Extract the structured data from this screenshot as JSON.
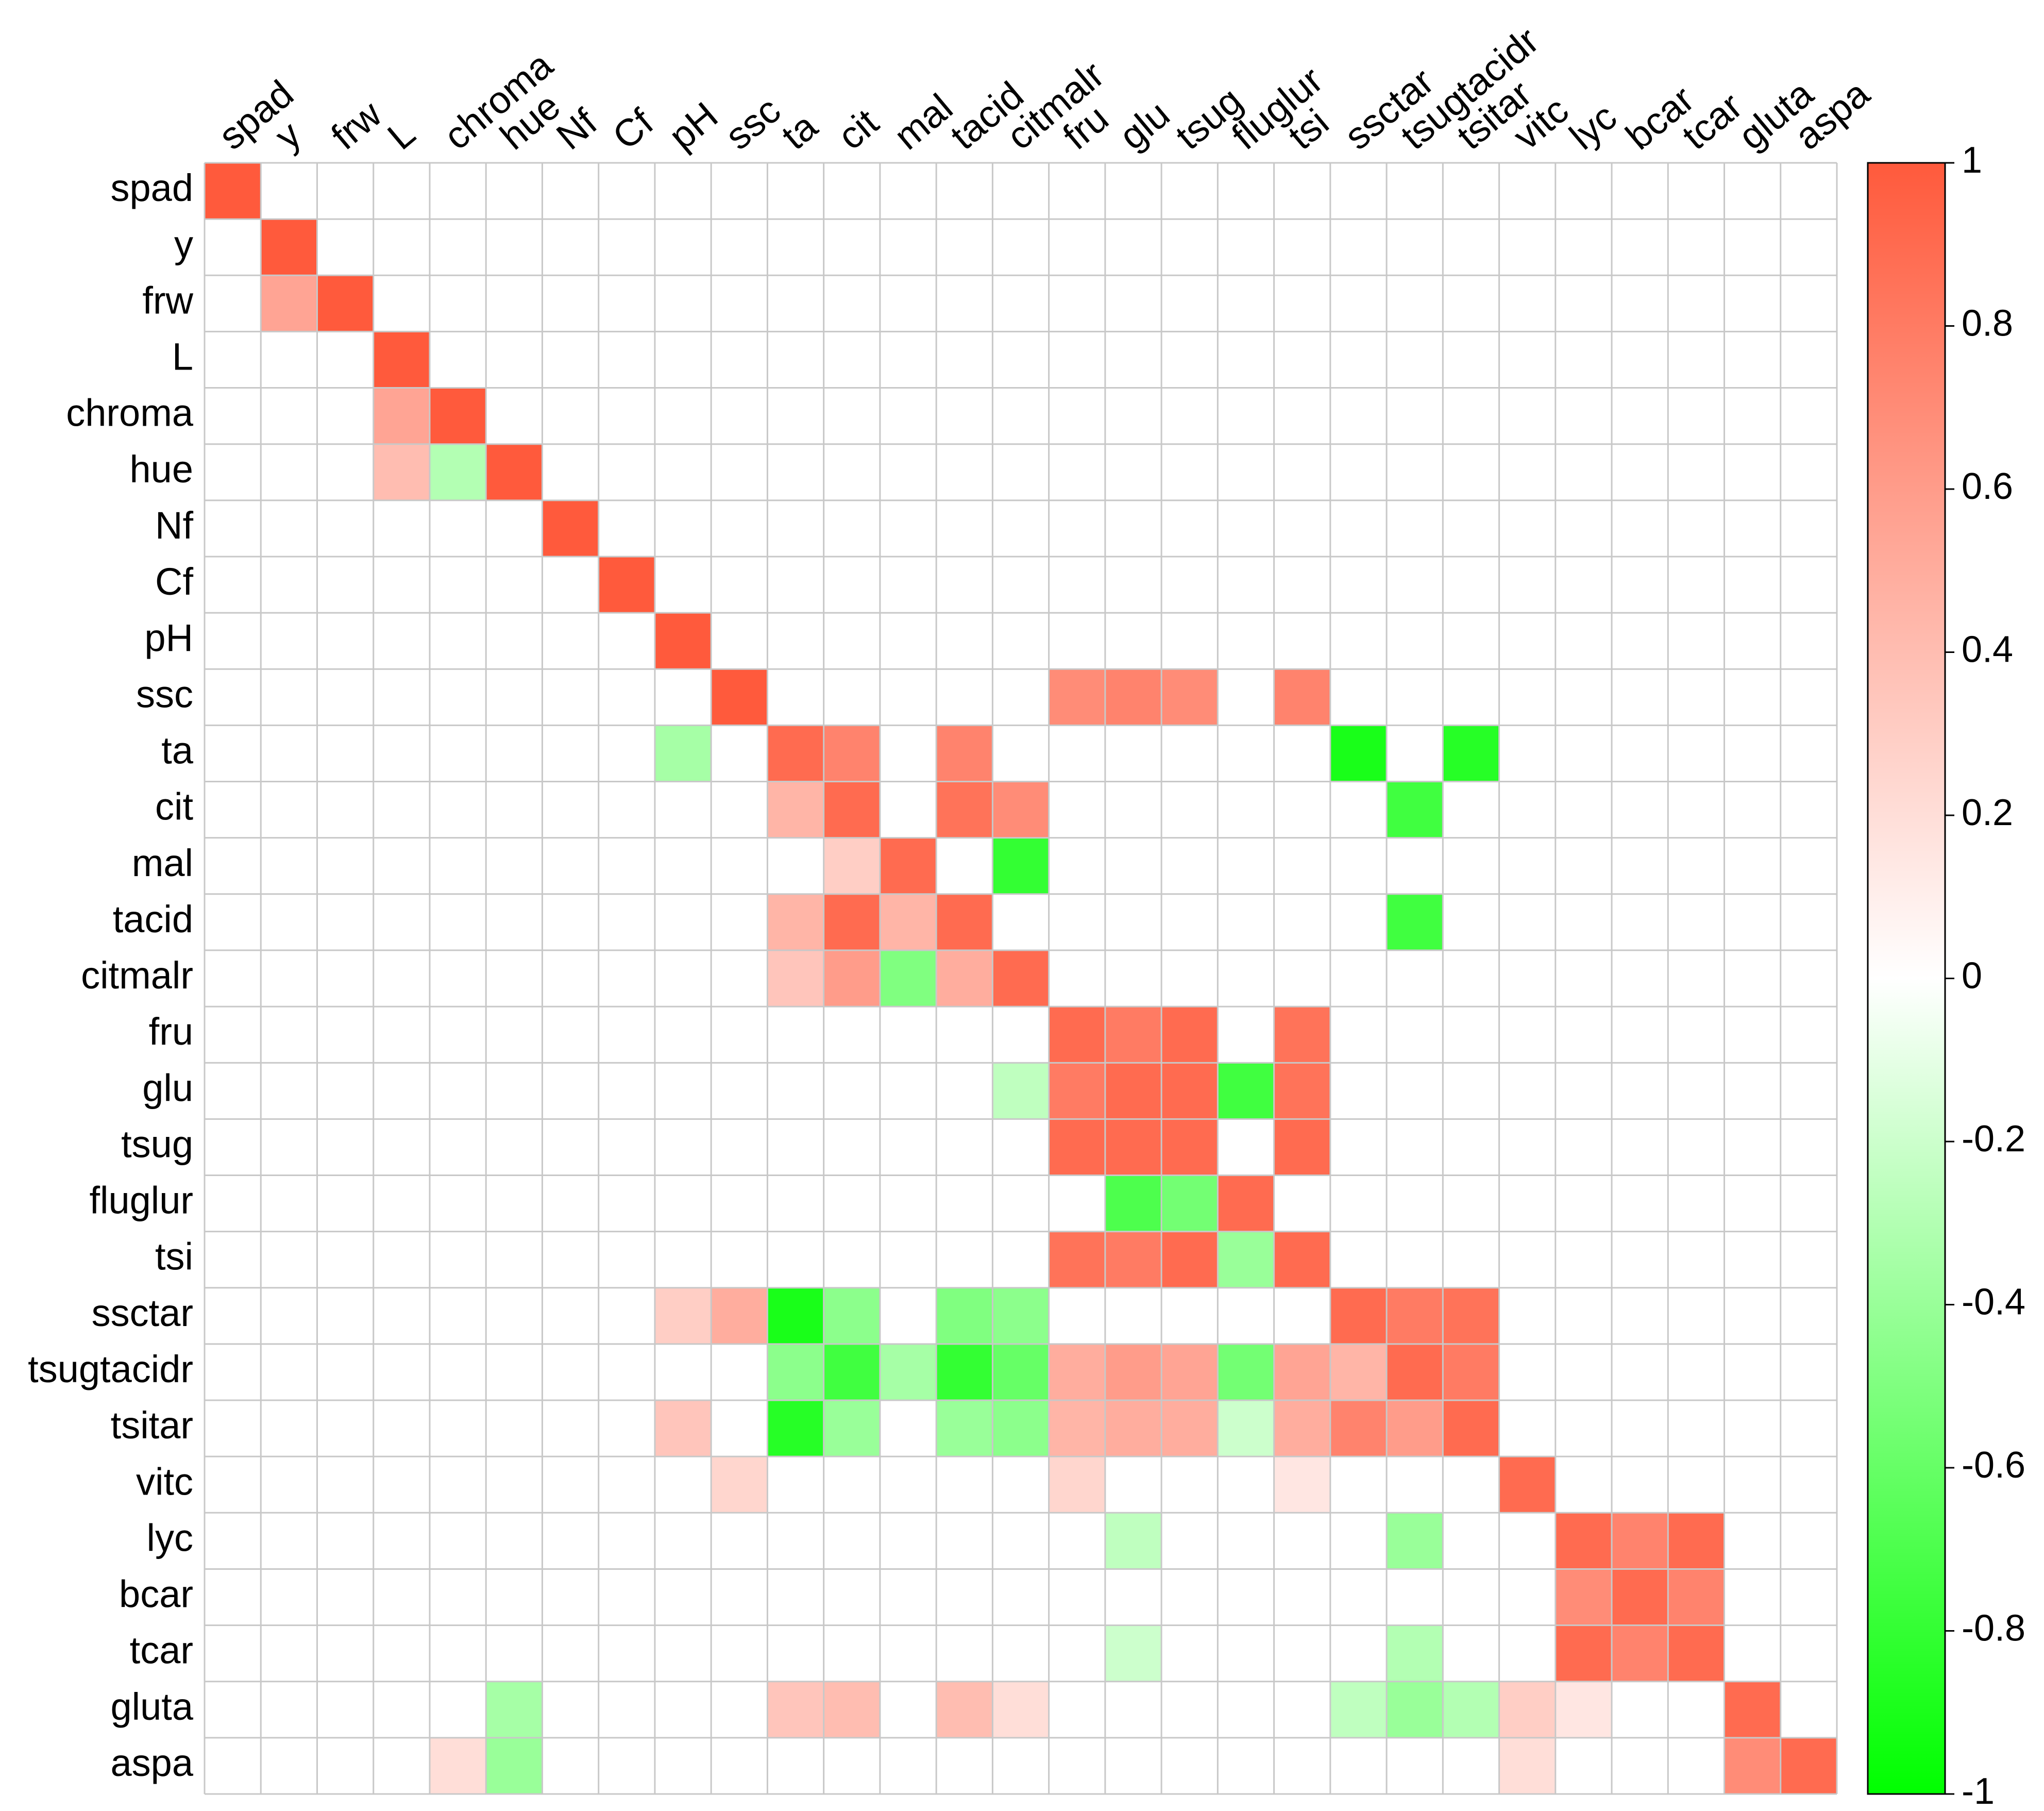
{
  "chart_data": {
    "type": "heatmap",
    "categories": [
      "spad",
      "y",
      "frw",
      "L",
      "chroma",
      "hue",
      "Nf",
      "Cf",
      "pH",
      "ssc",
      "ta",
      "cit",
      "mal",
      "tacid",
      "citmalr",
      "fru",
      "glu",
      "tsug",
      "fluglur",
      "tsi",
      "ssctar",
      "tsugtacidr",
      "tsitar",
      "vitc",
      "lyc",
      "bcar",
      "tcar",
      "gluta",
      "aspa"
    ],
    "values": [
      [
        1,
        null,
        null,
        null,
        null,
        null,
        null,
        null,
        null,
        null,
        null,
        null,
        null,
        null,
        null,
        null,
        null,
        null,
        null,
        null,
        null,
        null,
        null,
        null,
        null,
        null,
        null,
        null,
        null
      ],
      [
        null,
        1,
        null,
        null,
        null,
        null,
        null,
        null,
        null,
        null,
        null,
        null,
        null,
        null,
        null,
        null,
        null,
        null,
        null,
        null,
        null,
        null,
        null,
        null,
        null,
        null,
        null,
        null,
        null
      ],
      [
        null,
        0.55,
        1,
        null,
        null,
        null,
        null,
        null,
        null,
        null,
        null,
        null,
        null,
        null,
        null,
        null,
        null,
        null,
        null,
        null,
        null,
        null,
        null,
        null,
        null,
        null,
        null,
        null,
        null
      ],
      [
        null,
        null,
        null,
        1,
        null,
        null,
        null,
        null,
        null,
        null,
        null,
        null,
        null,
        null,
        null,
        null,
        null,
        null,
        null,
        null,
        null,
        null,
        null,
        null,
        null,
        null,
        null,
        null,
        null
      ],
      [
        null,
        null,
        null,
        0.55,
        1,
        null,
        null,
        null,
        null,
        null,
        null,
        null,
        null,
        null,
        null,
        null,
        null,
        null,
        null,
        null,
        null,
        null,
        null,
        null,
        null,
        null,
        null,
        null,
        null
      ],
      [
        null,
        null,
        null,
        0.4,
        -0.3,
        1,
        null,
        null,
        null,
        null,
        null,
        null,
        null,
        null,
        null,
        null,
        null,
        null,
        null,
        null,
        null,
        null,
        null,
        null,
        null,
        null,
        null,
        null,
        null
      ],
      [
        null,
        null,
        null,
        null,
        null,
        null,
        1,
        null,
        null,
        null,
        null,
        null,
        null,
        null,
        null,
        null,
        null,
        null,
        null,
        null,
        null,
        null,
        null,
        null,
        null,
        null,
        null,
        null,
        null
      ],
      [
        null,
        null,
        null,
        null,
        null,
        null,
        null,
        1,
        null,
        null,
        null,
        null,
        null,
        null,
        null,
        null,
        null,
        null,
        null,
        null,
        null,
        null,
        null,
        null,
        null,
        null,
        null,
        null,
        null
      ],
      [
        null,
        null,
        null,
        null,
        null,
        null,
        null,
        null,
        1,
        null,
        null,
        null,
        null,
        null,
        null,
        null,
        null,
        null,
        null,
        null,
        null,
        null,
        null,
        null,
        null,
        null,
        null,
        null,
        null
      ],
      [
        null,
        null,
        null,
        null,
        null,
        null,
        null,
        null,
        null,
        1,
        null,
        null,
        null,
        null,
        null,
        0.7,
        0.75,
        0.7,
        null,
        0.75,
        null,
        null,
        null,
        null,
        null,
        null,
        null,
        null,
        null
      ],
      [
        null,
        null,
        null,
        null,
        null,
        null,
        null,
        null,
        -0.35,
        null,
        0.9,
        0.75,
        null,
        0.75,
        null,
        null,
        null,
        null,
        null,
        null,
        -0.9,
        null,
        -0.85,
        null,
        null,
        null,
        null,
        null,
        null
      ],
      [
        null,
        null,
        null,
        null,
        null,
        null,
        null,
        null,
        null,
        null,
        0.45,
        0.9,
        null,
        0.85,
        0.7,
        null,
        null,
        null,
        null,
        null,
        null,
        -0.75,
        null,
        null,
        null,
        null,
        null,
        null,
        null
      ],
      [
        null,
        null,
        null,
        null,
        null,
        null,
        null,
        null,
        null,
        null,
        null,
        0.3,
        0.9,
        null,
        -0.8,
        null,
        null,
        null,
        null,
        null,
        null,
        null,
        null,
        null,
        null,
        null,
        null,
        null,
        null
      ],
      [
        null,
        null,
        null,
        null,
        null,
        null,
        null,
        null,
        null,
        null,
        0.45,
        0.9,
        0.45,
        0.9,
        null,
        null,
        null,
        null,
        null,
        null,
        null,
        -0.75,
        null,
        null,
        null,
        null,
        null,
        null,
        null
      ],
      [
        null,
        null,
        null,
        null,
        null,
        null,
        null,
        null,
        null,
        null,
        0.35,
        0.6,
        -0.5,
        0.5,
        0.9,
        null,
        null,
        null,
        null,
        null,
        null,
        null,
        null,
        null,
        null,
        null,
        null,
        null,
        null
      ],
      [
        null,
        null,
        null,
        null,
        null,
        null,
        null,
        null,
        null,
        null,
        null,
        null,
        null,
        null,
        null,
        0.9,
        0.8,
        0.9,
        null,
        0.85,
        null,
        null,
        null,
        null,
        null,
        null,
        null,
        null,
        null
      ],
      [
        null,
        null,
        null,
        null,
        null,
        null,
        null,
        null,
        null,
        null,
        null,
        null,
        null,
        null,
        -0.25,
        0.8,
        0.9,
        0.9,
        -0.75,
        0.85,
        null,
        null,
        null,
        null,
        null,
        null,
        null,
        null,
        null
      ],
      [
        null,
        null,
        null,
        null,
        null,
        null,
        null,
        null,
        null,
        null,
        null,
        null,
        null,
        null,
        null,
        0.9,
        0.9,
        0.9,
        null,
        0.9,
        null,
        null,
        null,
        null,
        null,
        null,
        null,
        null,
        null
      ],
      [
        null,
        null,
        null,
        null,
        null,
        null,
        null,
        null,
        null,
        null,
        null,
        null,
        null,
        null,
        null,
        null,
        -0.7,
        -0.55,
        0.9,
        null,
        null,
        null,
        null,
        null,
        null,
        null,
        null,
        null,
        null
      ],
      [
        null,
        null,
        null,
        null,
        null,
        null,
        null,
        null,
        null,
        null,
        null,
        null,
        null,
        null,
        null,
        0.85,
        0.8,
        0.9,
        -0.4,
        0.9,
        null,
        null,
        null,
        null,
        null,
        null,
        null,
        null,
        null
      ],
      [
        null,
        null,
        null,
        null,
        null,
        null,
        null,
        null,
        0.3,
        0.5,
        -0.9,
        -0.45,
        null,
        -0.5,
        -0.45,
        null,
        null,
        null,
        null,
        null,
        0.9,
        0.8,
        0.85,
        null,
        null,
        null,
        null,
        null,
        null
      ],
      [
        null,
        null,
        null,
        null,
        null,
        null,
        null,
        null,
        null,
        null,
        -0.45,
        -0.75,
        -0.35,
        -0.8,
        -0.6,
        0.5,
        0.6,
        0.55,
        -0.55,
        0.55,
        0.45,
        0.9,
        0.8,
        null,
        null,
        null,
        null,
        null,
        null
      ],
      [
        null,
        null,
        null,
        null,
        null,
        null,
        null,
        null,
        0.35,
        null,
        -0.85,
        -0.4,
        null,
        -0.4,
        -0.45,
        0.45,
        0.5,
        0.5,
        -0.2,
        0.5,
        0.75,
        0.6,
        0.9,
        null,
        null,
        null,
        null,
        null,
        null
      ],
      [
        null,
        null,
        null,
        null,
        null,
        null,
        null,
        null,
        null,
        0.25,
        null,
        null,
        null,
        null,
        null,
        0.25,
        null,
        null,
        null,
        0.15,
        null,
        null,
        null,
        0.9,
        null,
        null,
        null,
        null,
        null
      ],
      [
        null,
        null,
        null,
        null,
        null,
        null,
        null,
        null,
        null,
        null,
        null,
        null,
        null,
        null,
        null,
        null,
        -0.25,
        null,
        null,
        null,
        null,
        -0.4,
        null,
        null,
        0.9,
        0.75,
        0.9,
        null,
        null
      ],
      [
        null,
        null,
        null,
        null,
        null,
        null,
        null,
        null,
        null,
        null,
        null,
        null,
        null,
        null,
        null,
        null,
        null,
        null,
        null,
        null,
        null,
        null,
        null,
        null,
        0.7,
        0.9,
        0.75,
        null,
        null
      ],
      [
        null,
        null,
        null,
        null,
        null,
        null,
        null,
        null,
        null,
        null,
        null,
        null,
        null,
        null,
        null,
        null,
        -0.2,
        null,
        null,
        null,
        null,
        -0.3,
        null,
        null,
        0.9,
        0.75,
        0.9,
        null,
        null
      ],
      [
        null,
        null,
        null,
        null,
        null,
        -0.35,
        null,
        null,
        null,
        null,
        0.35,
        0.4,
        null,
        0.4,
        0.2,
        null,
        null,
        null,
        null,
        null,
        -0.25,
        -0.4,
        -0.3,
        0.3,
        0.15,
        null,
        null,
        0.9,
        null
      ],
      [
        null,
        null,
        null,
        null,
        0.2,
        -0.4,
        null,
        null,
        null,
        null,
        null,
        null,
        null,
        null,
        null,
        null,
        null,
        null,
        null,
        null,
        null,
        null,
        null,
        0.2,
        null,
        null,
        null,
        0.7,
        0.9
      ]
    ],
    "colorscale": [
      "#00ff00",
      "#ffffff",
      "#ff5a3c"
    ],
    "zlim": [
      -1,
      1
    ],
    "zticks": [
      -1,
      -0.8,
      -0.6,
      -0.4,
      -0.2,
      0,
      0.2,
      0.4,
      0.6,
      0.8,
      1
    ]
  }
}
